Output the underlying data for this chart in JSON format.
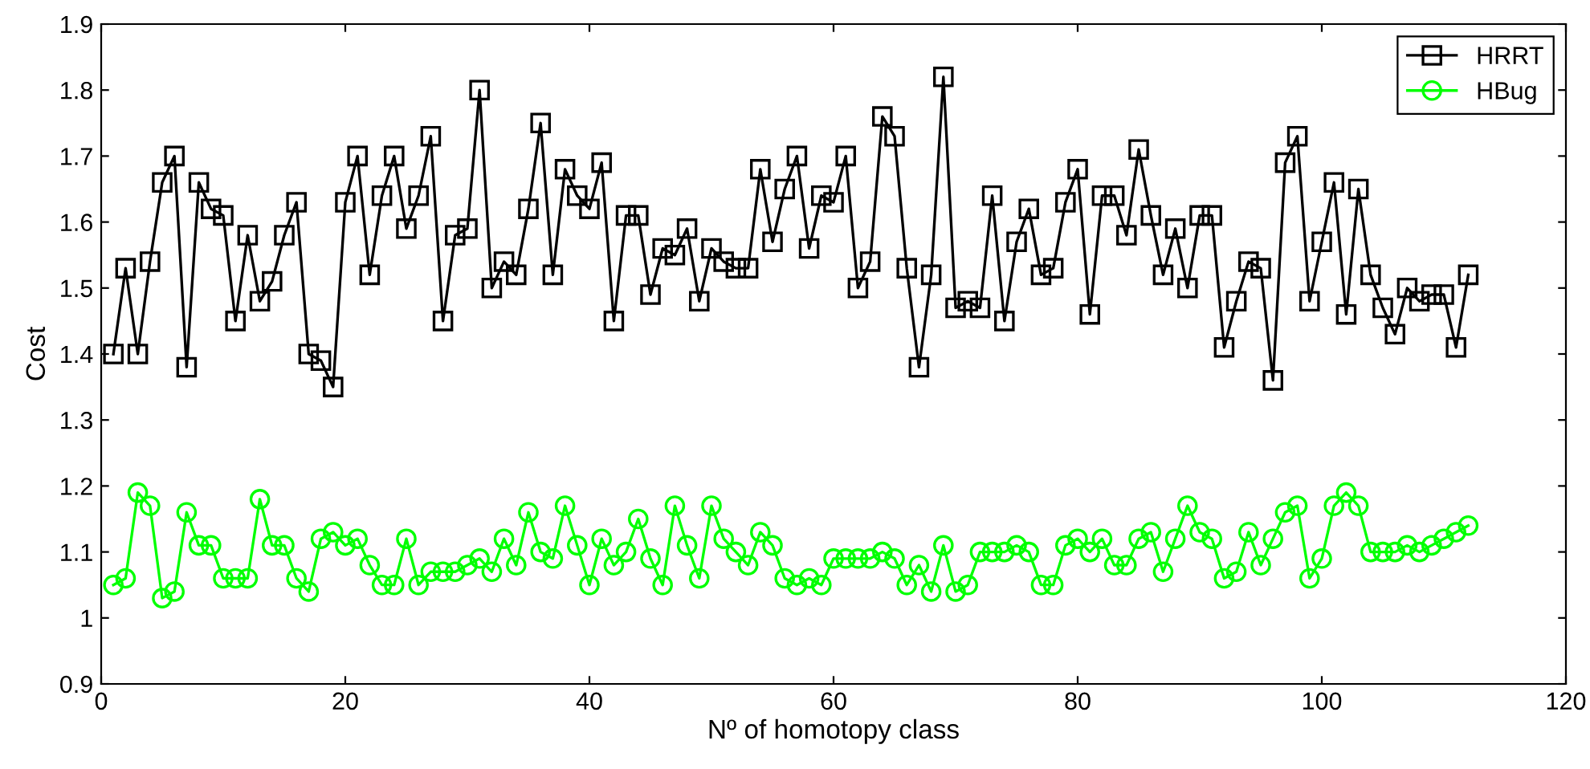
{
  "chart_data": {
    "type": "line",
    "xlabel": "Nº of homotopy class",
    "ylabel": "Cost",
    "x": [
      1,
      2,
      3,
      4,
      5,
      6,
      7,
      8,
      9,
      10,
      11,
      12,
      13,
      14,
      15,
      16,
      17,
      18,
      19,
      20,
      21,
      22,
      23,
      24,
      25,
      26,
      27,
      28,
      29,
      30,
      31,
      32,
      33,
      34,
      35,
      36,
      37,
      38,
      39,
      40,
      41,
      42,
      43,
      44,
      45,
      46,
      47,
      48,
      49,
      50,
      51,
      52,
      53,
      54,
      55,
      56,
      57,
      58,
      59,
      60,
      61,
      62,
      63,
      64,
      65,
      66,
      67,
      68,
      69,
      70,
      71,
      72,
      73,
      74,
      75,
      76,
      77,
      78,
      79,
      80,
      81,
      82,
      83,
      84,
      85,
      86,
      87,
      88,
      89,
      90,
      91,
      92,
      93,
      94,
      95,
      96,
      97,
      98,
      99,
      100,
      101,
      102,
      103,
      104,
      105,
      106,
      107,
      108,
      109,
      110,
      111,
      112
    ],
    "series": [
      {
        "name": "HRRT",
        "color": "#000000",
        "marker": "square",
        "values": [
          1.4,
          1.53,
          1.4,
          1.54,
          1.66,
          1.7,
          1.38,
          1.66,
          1.62,
          1.61,
          1.45,
          1.58,
          1.48,
          1.51,
          1.58,
          1.63,
          1.4,
          1.39,
          1.35,
          1.63,
          1.7,
          1.52,
          1.64,
          1.7,
          1.59,
          1.64,
          1.73,
          1.45,
          1.58,
          1.59,
          1.8,
          1.5,
          1.54,
          1.52,
          1.62,
          1.75,
          1.52,
          1.68,
          1.64,
          1.62,
          1.69,
          1.45,
          1.61,
          1.61,
          1.49,
          1.56,
          1.55,
          1.59,
          1.48,
          1.56,
          1.54,
          1.53,
          1.53,
          1.68,
          1.57,
          1.65,
          1.7,
          1.56,
          1.64,
          1.63,
          1.7,
          1.5,
          1.54,
          1.76,
          1.73,
          1.53,
          1.38,
          1.52,
          1.82,
          1.47,
          1.48,
          1.47,
          1.64,
          1.45,
          1.57,
          1.62,
          1.52,
          1.53,
          1.63,
          1.68,
          1.46,
          1.64,
          1.64,
          1.58,
          1.71,
          1.61,
          1.52,
          1.59,
          1.5,
          1.61,
          1.61,
          1.41,
          1.48,
          1.54,
          1.53,
          1.36,
          1.69,
          1.73,
          1.48,
          1.57,
          1.66,
          1.46,
          1.65,
          1.52,
          1.47,
          1.43,
          1.5,
          1.48,
          1.49,
          1.49,
          1.41,
          1.52
        ]
      },
      {
        "name": "HBug",
        "color": "#00ff00",
        "marker": "circle",
        "values": [
          1.05,
          1.06,
          1.19,
          1.17,
          1.03,
          1.04,
          1.16,
          1.11,
          1.11,
          1.06,
          1.06,
          1.06,
          1.18,
          1.11,
          1.11,
          1.06,
          1.04,
          1.12,
          1.13,
          1.11,
          1.12,
          1.08,
          1.05,
          1.05,
          1.12,
          1.05,
          1.07,
          1.07,
          1.07,
          1.08,
          1.09,
          1.07,
          1.12,
          1.08,
          1.16,
          1.1,
          1.09,
          1.17,
          1.11,
          1.05,
          1.12,
          1.08,
          1.1,
          1.15,
          1.09,
          1.05,
          1.17,
          1.11,
          1.06,
          1.17,
          1.12,
          1.1,
          1.08,
          1.13,
          1.11,
          1.06,
          1.05,
          1.06,
          1.05,
          1.09,
          1.09,
          1.09,
          1.09,
          1.1,
          1.09,
          1.05,
          1.08,
          1.04,
          1.11,
          1.04,
          1.05,
          1.1,
          1.1,
          1.1,
          1.11,
          1.1,
          1.05,
          1.05,
          1.11,
          1.12,
          1.1,
          1.12,
          1.08,
          1.08,
          1.12,
          1.13,
          1.07,
          1.12,
          1.17,
          1.13,
          1.12,
          1.06,
          1.07,
          1.13,
          1.08,
          1.12,
          1.16,
          1.17,
          1.06,
          1.09,
          1.17,
          1.19,
          1.17,
          1.1,
          1.1,
          1.1,
          1.11,
          1.1,
          1.11,
          1.12,
          1.13,
          1.14
        ]
      }
    ],
    "xlim": [
      0,
      120
    ],
    "xticks": [
      0,
      20,
      40,
      60,
      80,
      100,
      120
    ],
    "ylim": [
      0.9,
      1.9
    ],
    "yticks": [
      0.9,
      1,
      1.1,
      1.2,
      1.3,
      1.4,
      1.5,
      1.6,
      1.7,
      1.8,
      1.9
    ],
    "grid": false,
    "legend": "top right",
    "line_style": "solid"
  }
}
